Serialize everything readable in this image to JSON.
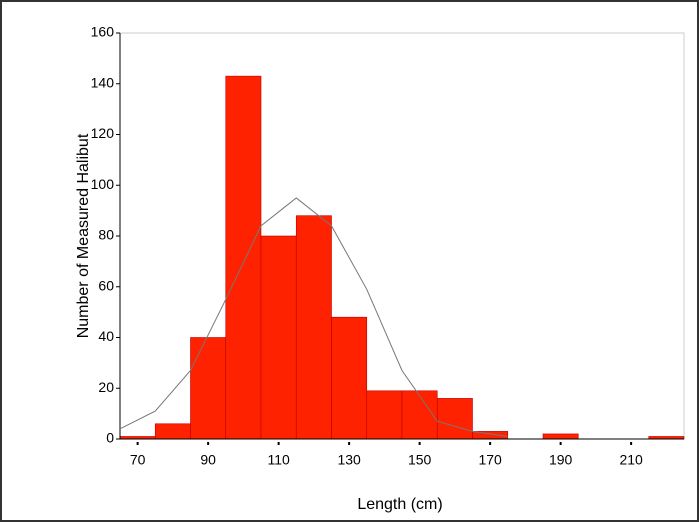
{
  "chart_data": {
    "type": "histogram",
    "xlabel": "Length (cm)",
    "ylabel": "Number of Measured Halibut",
    "bins": [
      65,
      75,
      85,
      95,
      105,
      115,
      125,
      135,
      145,
      155,
      165,
      175,
      185,
      195,
      205,
      215,
      225
    ],
    "values": [
      1,
      6,
      40,
      143,
      80,
      88,
      48,
      19,
      19,
      16,
      3,
      0,
      2,
      0,
      0,
      1
    ],
    "color": "#ff2200",
    "curve": {
      "color": "#777777",
      "x": [
        65,
        75,
        85,
        95,
        105,
        115,
        125,
        135,
        145,
        155,
        165,
        175
      ],
      "y": [
        4,
        11,
        27,
        55,
        84,
        95,
        84,
        59,
        27,
        7,
        3,
        1
      ]
    },
    "xlim": [
      65,
      225
    ],
    "ylim": [
      0,
      160
    ],
    "xticks": [
      70,
      90,
      110,
      130,
      150,
      170,
      190,
      210
    ],
    "yticks": [
      0,
      20,
      40,
      60,
      80,
      100,
      120,
      140,
      160
    ]
  }
}
